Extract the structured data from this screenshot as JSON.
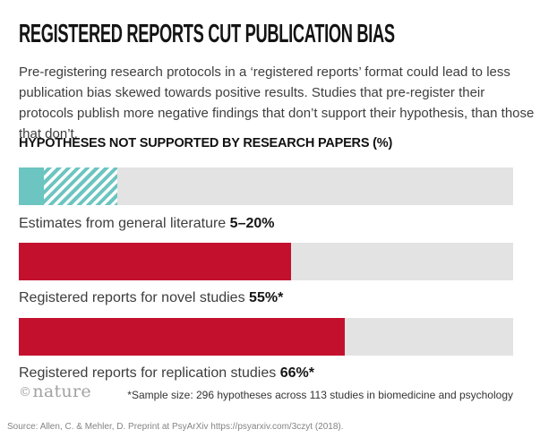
{
  "title": "REGISTERED REPORTS CUT PUBLICATION BIAS",
  "description": "Pre-registering research protocols in a ‘registered reports’ format could lead to less publication bias skewed towards positive results. Studies that pre-register their protocols publish more negative findings that don’t support their hypothesis, than those that don’t.",
  "section_header": "HYPOTHESES NOT SUPPORTED BY RESEARCH PAPERS (%)",
  "colors": {
    "teal": "#6cc5c0",
    "red": "#c3112d",
    "track": "#e3e3e3"
  },
  "chart_data": {
    "type": "bar",
    "orientation": "horizontal",
    "title": "HYPOTHESES NOT SUPPORTED BY RESEARCH PAPERS (%)",
    "unit": "%",
    "xlim": [
      0,
      100
    ],
    "grid": false,
    "legend": false,
    "bars": [
      {
        "label": "Estimates from general literature",
        "value_label": "5–20%",
        "value_min": 5,
        "value_max": 20,
        "fill": "teal solid 0–5%, teal hatched 5–20%"
      },
      {
        "label": "Registered reports for novel studies",
        "value_label": "55%*",
        "value": 55,
        "fill": "red"
      },
      {
        "label": "Registered reports for replication studies",
        "value_label": "66%*",
        "value": 66,
        "fill": "red"
      }
    ]
  },
  "footer": {
    "logo_copyright": "©",
    "logo_text": "nature",
    "footnote": "*Sample size: 296 hypotheses across 113 studies in biomedicine and psychology",
    "source": "Source: Allen, C. & Mehler, D. Preprint at PsyArXiv https://psyarxiv.com/3czyt (2018)."
  }
}
